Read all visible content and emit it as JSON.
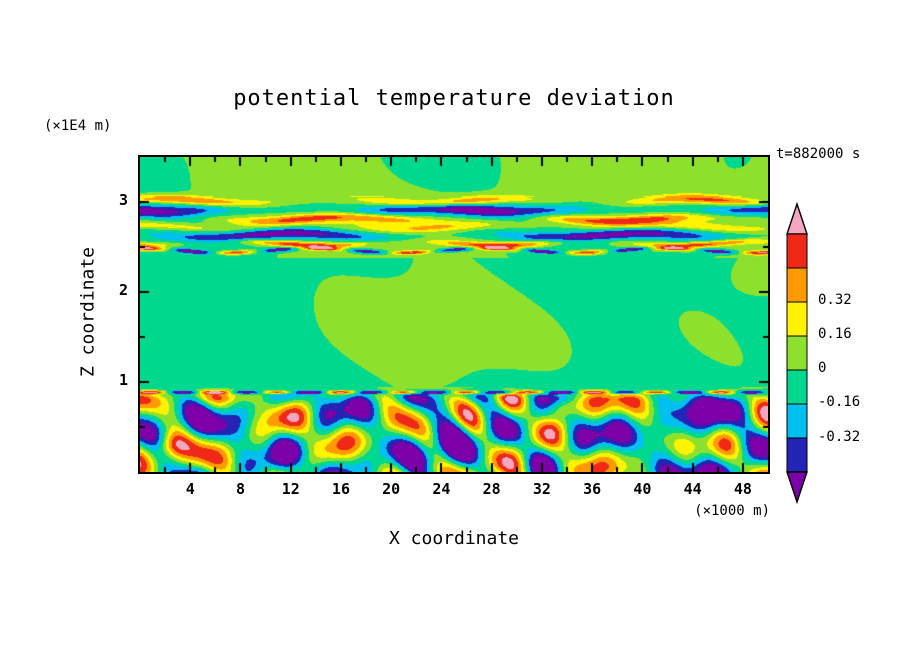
{
  "chart_data": {
    "type": "heatmap",
    "title": "potential temperature deviation",
    "time_label": "t=882000 s",
    "x_axis": {
      "label": "X coordinate",
      "unit": "(×1000 m)",
      "range": [
        0,
        50
      ],
      "ticks": [
        4,
        8,
        12,
        16,
        20,
        24,
        28,
        32,
        36,
        40,
        44,
        48
      ],
      "minor_tick_step": 2
    },
    "z_axis": {
      "label": "Z coordinate",
      "unit": "(×1E4 m)",
      "range": [
        0,
        3.5
      ],
      "ticks": [
        1,
        2,
        3
      ],
      "minor_tick_step": 0.5
    },
    "levels": [
      -0.48,
      -0.32,
      -0.16,
      0,
      0.16,
      0.32,
      0.48,
      0.64
    ],
    "level_colors_low_to_high": [
      "#7d00a8",
      "#2424b6",
      "#00c0f0",
      "#00d88e",
      "#8de12d",
      "#fff300",
      "#ff9b00",
      "#ef2817",
      "#f4a8c0"
    ],
    "colorbar": {
      "tick_labels": [
        "0.32",
        "0.16",
        "0",
        "-0.16",
        "-0.32"
      ],
      "segment_colors_top_to_bottom": [
        "#ef2817",
        "#ff9b00",
        "#fff300",
        "#8de12d",
        "#00d88e",
        "#00c0f0",
        "#2424b6"
      ],
      "arrow_top_color": "#f4a8c0",
      "arrow_bottom_color": "#7d00a8"
    },
    "field_approximation": {
      "description": "mostly near-zero greens; strong layered stripes z=2.4..3.05; turbulent mixed layer below z=0.9 with thin shear line at z=0.88",
      "stripes": [
        {
          "zc": 3.01,
          "w": 0.05,
          "a": 0.55,
          "f": 0.3,
          "p": 0.5
        },
        {
          "zc": 2.91,
          "w": 0.07,
          "a": -0.62,
          "f": 0.22,
          "p": 2.2
        },
        {
          "zc": 2.81,
          "w": 0.055,
          "a": 0.6,
          "f": 0.26,
          "p": 4.0
        },
        {
          "zc": 2.72,
          "w": 0.05,
          "a": 0.3,
          "f": 0.3,
          "p": 0.9
        },
        {
          "zc": 2.63,
          "w": 0.06,
          "a": -0.58,
          "f": 0.24,
          "p": 5.1
        },
        {
          "zc": 2.54,
          "w": 0.035,
          "a": 0.58,
          "f": 0.4,
          "p": 2.6
        },
        {
          "zc": 2.46,
          "w": 0.022,
          "a": 0.6,
          "f": 0.9,
          "p": 1.0,
          "alt": true
        }
      ],
      "patches": [
        {
          "x": 24,
          "z": 1.55,
          "sx": 11,
          "sz": 0.6,
          "a": 0.15
        },
        {
          "x": 50,
          "z": 2.25,
          "sx": 4,
          "sz": 0.35,
          "a": 0.13
        },
        {
          "x": 23,
          "z": 3.5,
          "sx": 4.5,
          "sz": 0.45,
          "a": -0.13
        },
        {
          "x": 1,
          "z": 3.45,
          "sx": 4,
          "sz": 0.4,
          "a": -0.13
        },
        {
          "x": 47,
          "z": 3.5,
          "sx": 2.5,
          "sz": 0.35,
          "a": -0.1
        },
        {
          "x": 24.5,
          "z": 0.4,
          "sx": 2.6,
          "sz": 0.28,
          "a": -0.45
        },
        {
          "x": 33.5,
          "z": 0.72,
          "sx": 1.3,
          "sz": 0.1,
          "a": 0.4
        },
        {
          "x": 2.5,
          "z": 0.3,
          "sx": 1.1,
          "sz": 0.14,
          "a": 0.35
        },
        {
          "x": 44.5,
          "z": 0.5,
          "sx": 2.2,
          "sz": 0.3,
          "a": -0.3
        }
      ]
    }
  }
}
